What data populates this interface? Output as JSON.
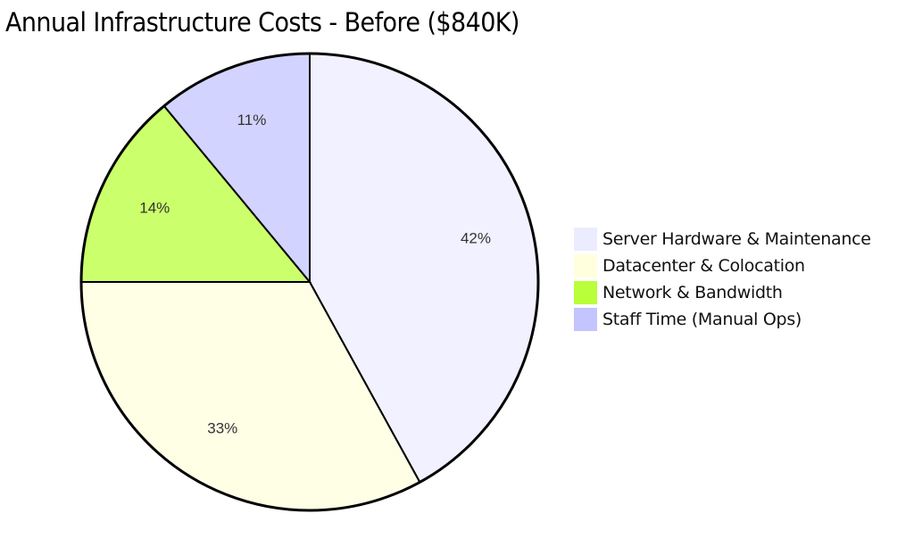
{
  "chart_data": {
    "type": "pie",
    "title": "Annual Infrastructure Costs - Before ($840K)",
    "start_angle_deg": -90,
    "direction": "clockwise",
    "slices": [
      {
        "label": "Server Hardware & Maintenance",
        "value": 42,
        "display": "42%",
        "color": "#ECECFF"
      },
      {
        "label": "Datacenter & Colocation",
        "value": 33,
        "display": "33%",
        "color": "#FFFFDE"
      },
      {
        "label": "Network & Bandwidth",
        "value": 14,
        "display": "14%",
        "color": "#B9FF3A"
      },
      {
        "label": "Staff Time (Manual Ops)",
        "value": 11,
        "display": "11%",
        "color": "#C4C4FF"
      }
    ],
    "legend_position": "right",
    "center": [
      347,
      316
    ],
    "radius": 256
  }
}
